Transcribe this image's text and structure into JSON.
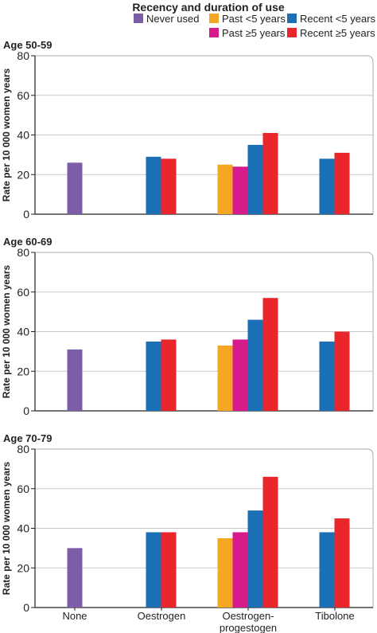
{
  "legend": {
    "title": "Recency and duration of use",
    "items": [
      {
        "key": "never",
        "label": "Never used",
        "color": "#7b5ea7"
      },
      {
        "key": "past_lt5",
        "label": "Past <5 years",
        "color": "#f5a623"
      },
      {
        "key": "past_ge5",
        "label": "Past ≥5 years",
        "color": "#d81b8c"
      },
      {
        "key": "recent_lt5",
        "label": "Recent <5 years",
        "color": "#1a6fb5"
      },
      {
        "key": "recent_ge5",
        "label": "Recent ≥5 years",
        "color": "#e8262b"
      }
    ]
  },
  "style": {
    "axis_color": "#222222",
    "grid_color": "#c8c8c8",
    "frame_color": "#aaaaaa"
  },
  "chart_data": [
    {
      "type": "bar",
      "title": "Age 50-59",
      "ylabel": "Rate per 10 000 women years",
      "ylim": [
        0,
        80
      ],
      "yticks": [
        0,
        20,
        40,
        60,
        80
      ],
      "grid": true,
      "categories": [
        "None",
        "Oestrogen",
        "Oestrogen-progestogen",
        "Tibolone"
      ],
      "series": [
        {
          "name": "Never used",
          "values": [
            26,
            null,
            null,
            null
          ]
        },
        {
          "name": "Past <5 years",
          "values": [
            null,
            null,
            25,
            null
          ]
        },
        {
          "name": "Past ≥5 years",
          "values": [
            null,
            null,
            24,
            null
          ]
        },
        {
          "name": "Recent <5 years",
          "values": [
            null,
            29,
            35,
            28
          ]
        },
        {
          "name": "Recent ≥5 years",
          "values": [
            null,
            28,
            41,
            31
          ]
        }
      ]
    },
    {
      "type": "bar",
      "title": "Age 60-69",
      "ylabel": "Rate per 10 000 women years",
      "ylim": [
        0,
        80
      ],
      "yticks": [
        0,
        20,
        40,
        60,
        80
      ],
      "grid": true,
      "categories": [
        "None",
        "Oestrogen",
        "Oestrogen-progestogen",
        "Tibolone"
      ],
      "series": [
        {
          "name": "Never used",
          "values": [
            31,
            null,
            null,
            null
          ]
        },
        {
          "name": "Past <5 years",
          "values": [
            null,
            null,
            33,
            null
          ]
        },
        {
          "name": "Past ≥5 years",
          "values": [
            null,
            null,
            36,
            null
          ]
        },
        {
          "name": "Recent <5 years",
          "values": [
            null,
            35,
            46,
            35
          ]
        },
        {
          "name": "Recent ≥5 years",
          "values": [
            null,
            36,
            57,
            40
          ]
        }
      ]
    },
    {
      "type": "bar",
      "title": "Age 70-79",
      "ylabel": "Rate per 10 000 women years",
      "ylim": [
        0,
        80
      ],
      "yticks": [
        0,
        20,
        40,
        60,
        80
      ],
      "grid": true,
      "categories": [
        "None",
        "Oestrogen",
        "Oestrogen-progestogen",
        "Tibolone"
      ],
      "category_labels": [
        [
          "None"
        ],
        [
          "Oestrogen"
        ],
        [
          "Oestrogen-",
          "progestogen"
        ],
        [
          "Tibolone"
        ]
      ],
      "series": [
        {
          "name": "Never used",
          "values": [
            30,
            null,
            null,
            null
          ]
        },
        {
          "name": "Past <5 years",
          "values": [
            null,
            null,
            35,
            null
          ]
        },
        {
          "name": "Past ≥5 years",
          "values": [
            null,
            null,
            38,
            null
          ]
        },
        {
          "name": "Recent <5 years",
          "values": [
            null,
            38,
            49,
            38
          ]
        },
        {
          "name": "Recent ≥5 years",
          "values": [
            null,
            38,
            66,
            45
          ]
        }
      ]
    }
  ]
}
